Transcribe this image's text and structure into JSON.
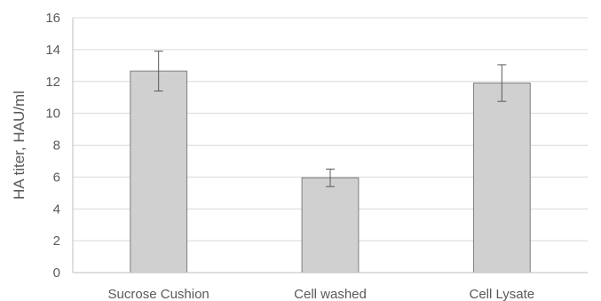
{
  "chart_data": {
    "type": "bar",
    "title": "",
    "xlabel": "",
    "ylabel": "HA titer, HAU/ml",
    "categories": [
      "Sucrose Cushion",
      "Cell washed",
      "Cell Lysate"
    ],
    "values": [
      12.65,
      5.95,
      11.9
    ],
    "error": [
      1.25,
      0.55,
      1.15
    ],
    "ylim": [
      0,
      16
    ],
    "yticks": [
      "0",
      "2",
      "4",
      "6",
      "8",
      "10",
      "12",
      "14",
      "16"
    ],
    "grid": true,
    "legend": "none",
    "colors": {
      "bar_fill": "#d0d0d0",
      "bar_stroke": "#7f7f7f",
      "grid": "#d9d9d9",
      "axis": "#bfbfbf",
      "error_bar": "#595959",
      "text": "#595959"
    }
  }
}
